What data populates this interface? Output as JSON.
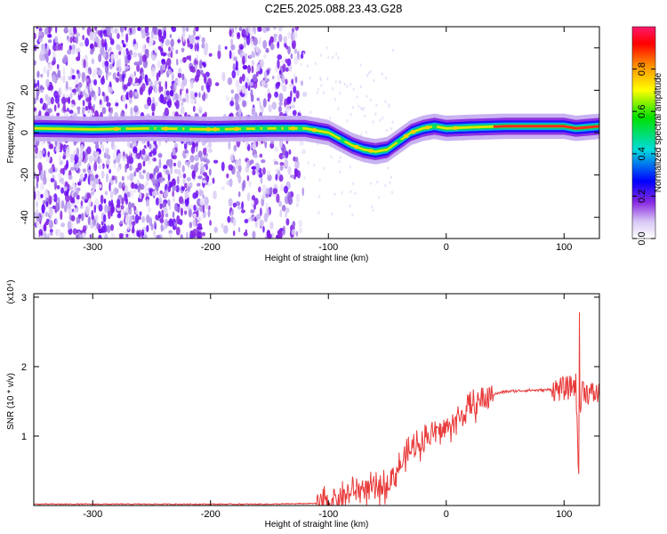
{
  "title": "C2E5.2025.088.23.43.G28",
  "chart_data": [
    {
      "type": "heatmap",
      "xlabel": "Height of straight line (km)",
      "ylabel": "Frequency (Hz)",
      "xlim": [
        -350,
        130
      ],
      "ylim": [
        -50,
        50
      ],
      "x_ticks": [
        -300,
        -200,
        -100,
        0,
        100
      ],
      "y_ticks": [
        -40,
        -20,
        0,
        20,
        40
      ],
      "colorbar": {
        "label": "Normalized spectral amplitude",
        "range": [
          0,
          1
        ],
        "ticks": [
          0.0,
          0.2,
          0.4,
          0.6,
          0.8
        ]
      },
      "ridge": {
        "x": [
          -350,
          -300,
          -250,
          -200,
          -150,
          -120,
          -100,
          -90,
          -80,
          -70,
          -60,
          -50,
          -40,
          -30,
          -20,
          -10,
          0,
          20,
          50,
          80,
          100,
          110,
          130
        ],
        "y": [
          2,
          1.5,
          2,
          1.5,
          2,
          2,
          0,
          -3,
          -6,
          -8,
          -9,
          -8,
          -4,
          0,
          2,
          3,
          2,
          2.5,
          3,
          3,
          3,
          2,
          3
        ]
      }
    },
    {
      "type": "line",
      "xlabel": "Height of straight line (km)",
      "ylabel": "SNR (10 * v/v)",
      "yscale_label": "(x10⁴)",
      "xlim": [
        -350,
        130
      ],
      "ylim": [
        0,
        3.05
      ],
      "x_ticks": [
        -300,
        -200,
        -100,
        0,
        100
      ],
      "y_ticks": [
        1,
        2,
        3
      ],
      "series_color": "#e83a3a",
      "x": [
        -350,
        -250,
        -150,
        -110,
        -100,
        -90,
        -80,
        -70,
        -60,
        -50,
        -40,
        -30,
        -20,
        -10,
        0,
        10,
        20,
        30,
        40,
        50,
        60,
        70,
        80,
        90,
        100,
        105,
        110,
        112,
        115,
        120,
        130
      ],
      "y": [
        0.02,
        0.02,
        0.02,
        0.03,
        0.05,
        0.12,
        0.2,
        0.25,
        0.22,
        0.3,
        0.55,
        0.8,
        0.95,
        1.05,
        1.1,
        1.25,
        1.4,
        1.52,
        1.6,
        1.64,
        1.65,
        1.66,
        1.66,
        1.67,
        1.68,
        1.7,
        1.75,
        0.6,
        1.7,
        1.62,
        1.6
      ]
    }
  ]
}
